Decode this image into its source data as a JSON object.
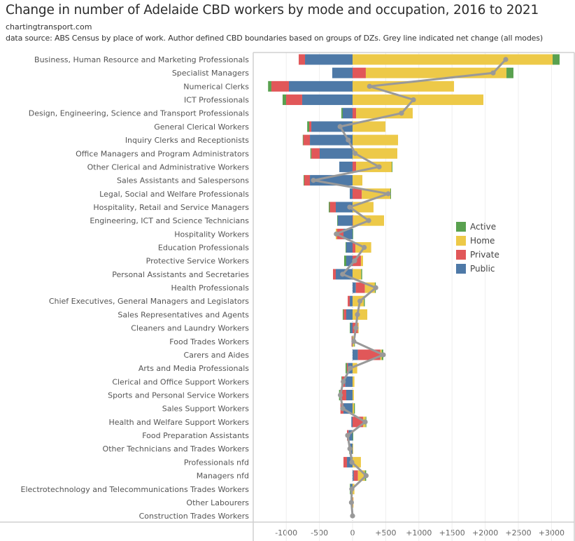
{
  "header": {
    "title": "Change in number of Adelaide CBD workers by mode and occupation, 2016 to 2021",
    "site": "chartingtransport.com",
    "note": "data source: ABS Census by place of work. Author defined CBD boundaries based on groups of DZs. Grey line indicated net change (all modes)"
  },
  "chart_data": {
    "type": "bar",
    "orientation": "horizontal",
    "stacked": true,
    "title": "Change in number of Adelaide CBD workers by mode and occupation, 2016 to 2021",
    "xlabel": "",
    "ylabel": "",
    "xlim": [
      -1500,
      3500
    ],
    "x_ticks": [
      -1000,
      -500,
      0,
      500,
      1000,
      1500,
      2000,
      2500,
      3000
    ],
    "x_tick_labels": [
      "-1000",
      "-500",
      "0",
      "+500",
      "+1000",
      "+1500",
      "+2000",
      "+2500",
      "+3000"
    ],
    "grid": true,
    "legend_position": "right",
    "categories": [
      "Business, Human Resource and Marketing Professionals",
      "Specialist Managers",
      "Numerical Clerks",
      "ICT Professionals",
      "Design, Engineering, Science and Transport Professionals",
      "General Clerical Workers",
      "Inquiry Clerks and Receptionists",
      "Office Managers and Program Administrators",
      "Other Clerical and Administrative Workers",
      "Sales Assistants and Salespersons",
      "Legal, Social and Welfare Professionals",
      "Hospitality, Retail and Service Managers",
      "Engineering, ICT and Science Technicians",
      "Hospitality Workers",
      "Education Professionals",
      "Protective Service Workers",
      "Personal Assistants and Secretaries",
      "Health Professionals",
      "Chief Executives, General Managers and Legislators",
      "Sales Representatives and Agents",
      "Cleaners and Laundry Workers",
      "Food Trades Workers",
      "Carers and Aides",
      "Arts and Media Professionals",
      "Clerical and Office Support Workers",
      "Sports and Personal Service Workers",
      "Sales Support Workers",
      "Health and Welfare Support Workers",
      "Food Preparation Assistants",
      "Other Technicians and Trades Workers",
      "Professionals nfd",
      "Managers nfd",
      "Electrotechnology and Telecommunications Trades Workers",
      "Other Labourers",
      "Construction Trades Workers"
    ],
    "series": [
      {
        "name": "Public",
        "color": "#4e79a7",
        "values": [
          -717,
          -306,
          -960,
          -760,
          -148,
          -622,
          -643,
          -496,
          -200,
          -643,
          -42,
          -253,
          -225,
          -137,
          -95,
          -95,
          -253,
          50,
          -42,
          -95,
          -35,
          -10,
          80,
          -70,
          -113,
          -95,
          -137,
          -18,
          -60,
          -40,
          -84,
          18,
          -35,
          -15,
          0
        ]
      },
      {
        "name": "Private",
        "color": "#e15759",
        "values": [
          -95,
          200,
          -264,
          -242,
          53,
          -32,
          -100,
          -125,
          53,
          -85,
          140,
          -90,
          5,
          -100,
          42,
          126,
          -42,
          136,
          -31,
          -40,
          80,
          -5,
          340,
          -15,
          -45,
          -95,
          -46,
          158,
          -24,
          0,
          -53,
          63,
          0,
          5,
          0
        ]
      },
      {
        "name": "Home",
        "color": "#edc948",
        "values": [
          3017,
          2121,
          1530,
          1973,
          854,
          496,
          686,
          675,
          538,
          148,
          430,
          316,
          470,
          -16,
          239,
          32,
          130,
          151,
          170,
          222,
          12,
          25,
          20,
          70,
          28,
          20,
          21,
          39,
          0,
          10,
          126,
          105,
          28,
          3,
          0
        ]
      },
      {
        "name": "Active",
        "color": "#59a14f",
        "values": [
          105,
          105,
          -50,
          -53,
          -21,
          -30,
          -8,
          -15,
          10,
          -10,
          10,
          -16,
          -7,
          8,
          -10,
          -32,
          15,
          13,
          15,
          -13,
          -7,
          10,
          23,
          -20,
          -10,
          -14,
          14,
          11,
          10,
          -10,
          0,
          19,
          -5,
          -10,
          0
        ]
      }
    ],
    "net_line": {
      "name": "Net change (all modes)",
      "color": "#999999",
      "values": [
        2310,
        2120,
        256,
        918,
        738,
        -188,
        -65,
        39,
        401,
        -590,
        538,
        -43,
        243,
        -245,
        176,
        31,
        -150,
        350,
        112,
        74,
        50,
        20,
        463,
        -35,
        -140,
        -184,
        -148,
        190,
        -74,
        -40,
        -11,
        205,
        -12,
        -17,
        0
      ]
    }
  },
  "legend": {
    "items": [
      {
        "label": "Active",
        "color": "#59a14f"
      },
      {
        "label": "Home",
        "color": "#edc948"
      },
      {
        "label": "Private",
        "color": "#e15759"
      },
      {
        "label": "Public",
        "color": "#4e79a7"
      }
    ]
  }
}
